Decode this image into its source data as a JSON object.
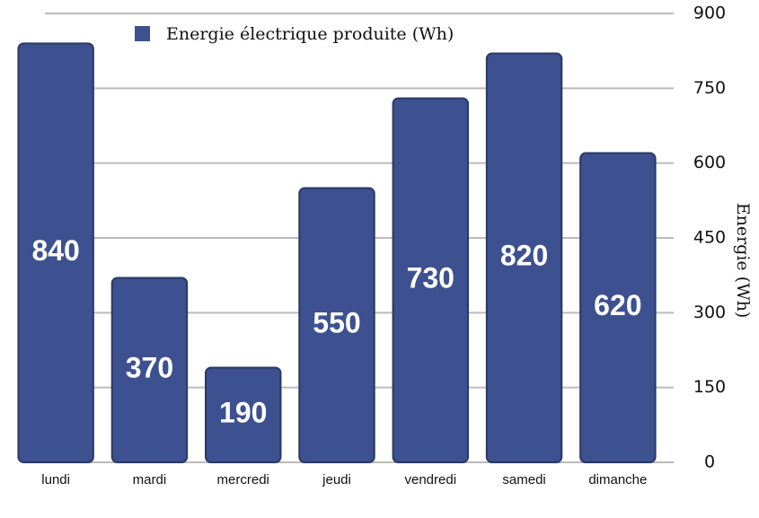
{
  "chart_data": {
    "type": "bar",
    "legend_label": "Energie électrique produite (Wh)",
    "y_axis_label": "Energie (Wh)",
    "categories": [
      "lundi",
      "mardi",
      "mercredi",
      "jeudi",
      "vendredi",
      "samedi",
      "dimanche"
    ],
    "values": [
      840,
      370,
      190,
      550,
      730,
      820,
      620
    ],
    "color": "#3d5190",
    "ylim": [
      0,
      900
    ],
    "yticks": [
      0,
      150,
      300,
      450,
      600,
      750,
      900
    ],
    "grid": true,
    "legend_position": "top"
  }
}
